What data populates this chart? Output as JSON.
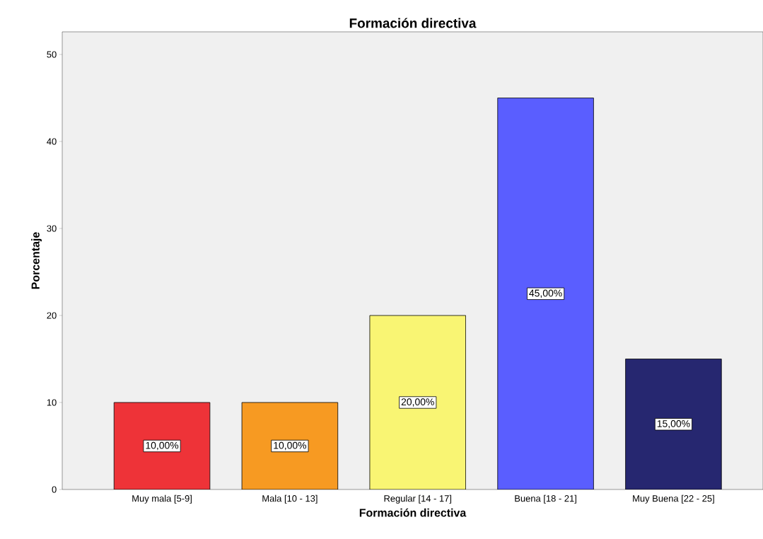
{
  "chart_data": {
    "type": "bar",
    "title": "Formación directiva",
    "xlabel": "Formación directiva",
    "ylabel": "Porcentaje",
    "categories": [
      "Muy mala [5-9]",
      "Mala [10 - 13]",
      "Regular [14 - 17]",
      "Buena [18 - 21]",
      "Muy Buena [22 - 25]"
    ],
    "values": [
      10,
      10,
      20,
      45,
      15
    ],
    "value_labels": [
      "10,00%",
      "10,00%",
      "20,00%",
      "45,00%",
      "15,00%"
    ],
    "colors": [
      "#ee3338",
      "#f79a22",
      "#f9f573",
      "#5a5eff",
      "#262770"
    ],
    "ylim": [
      0,
      52.6
    ],
    "yticks": [
      0,
      10,
      20,
      30,
      40,
      50
    ],
    "grid": false
  }
}
